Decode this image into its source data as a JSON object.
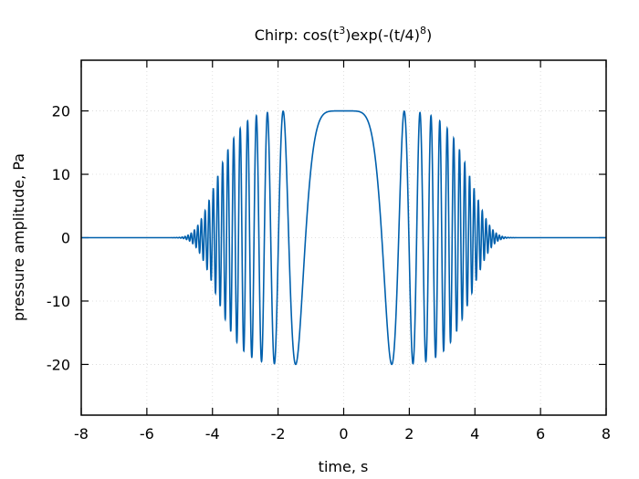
{
  "chart_data": {
    "type": "line",
    "title_main": "Chirp: cos(t",
    "title_sup1": "3",
    "title_mid": ")exp(-(t/4)",
    "title_sup2": "8",
    "title_end": ")",
    "xlabel": "time, s",
    "ylabel": "pressure amplitude, Pa",
    "xlim": [
      -8,
      8
    ],
    "ylim": [
      -28,
      28
    ],
    "xticks": [
      "-8",
      "-6",
      "-4",
      "-2",
      "0",
      "2",
      "4",
      "6",
      "8"
    ],
    "yticks": [
      "20",
      "10",
      "0",
      "-10",
      "-20"
    ],
    "grid": true,
    "series": [
      {
        "function": "20*cos(t^3)*exp(-(t/4)^8)",
        "amplitude": 20,
        "color": "#0060ad"
      }
    ]
  }
}
